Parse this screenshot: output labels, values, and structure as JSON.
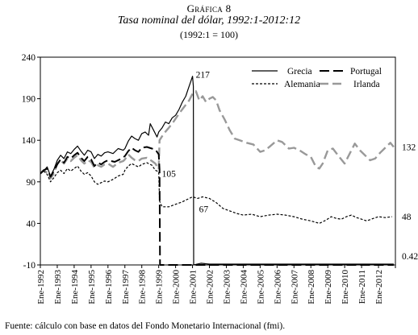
{
  "header": {
    "label": "Gráfica 8",
    "title": "Tasa nominal del dólar, 1992:1-2012:12",
    "subtitle": "(1992:1 = 100)"
  },
  "source": "Fuente: cálculo con base en datos del Fondo Monetario Internacional (fmi).",
  "chart_data": {
    "type": "line",
    "ylim": [
      -10,
      240
    ],
    "yticks": [
      -10,
      40,
      90,
      140,
      190,
      240
    ],
    "xlim": [
      1992,
      2013
    ],
    "xticks": [
      "Ene-1992",
      "Ene-1993",
      "Ene-1994",
      "Ene-1995",
      "Ene-1996",
      "Ene-1997",
      "Ene-1998",
      "Ene-1999",
      "Ene-2000",
      "Ene-2001",
      "Ene-2002",
      "Ene-2003",
      "Ene-2004",
      "Ene-2005",
      "Ene-2006",
      "Ene-2007",
      "Ene-2008",
      "Ene-2009",
      "Ene-2010",
      "Ene-2011",
      "Ene-2012"
    ],
    "legend_position": "top-right",
    "annotations": [
      {
        "text": "217",
        "x": 2001.0,
        "y": 217
      },
      {
        "text": "105",
        "x": 1999.0,
        "y": 105
      },
      {
        "text": "67",
        "x": 2001.0,
        "y": 67
      },
      {
        "text": "132",
        "x": 2013.0,
        "y": 132
      },
      {
        "text": "48",
        "x": 2013.0,
        "y": 48
      },
      {
        "text": "0.42",
        "x": 2013.0,
        "y": 0.42
      }
    ],
    "series": [
      {
        "name": "Grecia",
        "style": "solid",
        "color": "#000000",
        "points": [
          [
            1992.0,
            100
          ],
          [
            1992.2,
            103
          ],
          [
            1992.4,
            108
          ],
          [
            1992.6,
            97
          ],
          [
            1992.8,
            105
          ],
          [
            1993.0,
            116
          ],
          [
            1993.2,
            122
          ],
          [
            1993.4,
            118
          ],
          [
            1993.6,
            126
          ],
          [
            1993.8,
            124
          ],
          [
            1994.0,
            129
          ],
          [
            1994.2,
            133
          ],
          [
            1994.4,
            127
          ],
          [
            1994.6,
            122
          ],
          [
            1994.8,
            128
          ],
          [
            1995.0,
            126
          ],
          [
            1995.2,
            118
          ],
          [
            1995.4,
            123
          ],
          [
            1995.6,
            121
          ],
          [
            1995.8,
            125
          ],
          [
            1996.0,
            126
          ],
          [
            1996.3,
            124
          ],
          [
            1996.6,
            130
          ],
          [
            1996.9,
            128
          ],
          [
            1997.0,
            130
          ],
          [
            1997.2,
            139
          ],
          [
            1997.4,
            145
          ],
          [
            1997.6,
            142
          ],
          [
            1997.8,
            140
          ],
          [
            1998.0,
            148
          ],
          [
            1998.2,
            150
          ],
          [
            1998.4,
            146
          ],
          [
            1998.5,
            160
          ],
          [
            1998.7,
            152
          ],
          [
            1998.9,
            144
          ],
          [
            1999.0,
            150
          ],
          [
            1999.2,
            155
          ],
          [
            1999.4,
            162
          ],
          [
            1999.6,
            160
          ],
          [
            1999.8,
            167
          ],
          [
            2000.0,
            170
          ],
          [
            2000.2,
            177
          ],
          [
            2000.4,
            186
          ],
          [
            2000.6,
            193
          ],
          [
            2000.75,
            202
          ],
          [
            2000.9,
            211
          ],
          [
            2001.0,
            217
          ],
          [
            2001.05,
            205
          ],
          [
            2001.07,
            -10
          ],
          [
            2001.5,
            -8
          ],
          [
            2002.0,
            -9
          ],
          [
            2005.0,
            -9
          ],
          [
            2010.0,
            -9
          ],
          [
            2012.9,
            -9
          ]
        ]
      },
      {
        "name": "Portugal",
        "style": "dashed",
        "color": "#000000",
        "points": [
          [
            1992.0,
            100
          ],
          [
            1992.2,
            104
          ],
          [
            1992.4,
            106
          ],
          [
            1992.6,
            96
          ],
          [
            1992.8,
            103
          ],
          [
            1993.0,
            111
          ],
          [
            1993.2,
            117
          ],
          [
            1993.4,
            113
          ],
          [
            1993.6,
            120
          ],
          [
            1993.8,
            118
          ],
          [
            1994.0,
            122
          ],
          [
            1994.2,
            125
          ],
          [
            1994.4,
            119
          ],
          [
            1994.6,
            115
          ],
          [
            1994.8,
            120
          ],
          [
            1995.0,
            117
          ],
          [
            1995.2,
            109
          ],
          [
            1995.4,
            113
          ],
          [
            1995.6,
            111
          ],
          [
            1995.8,
            114
          ],
          [
            1996.0,
            116
          ],
          [
            1996.4,
            114
          ],
          [
            1996.8,
            118
          ],
          [
            1997.0,
            121
          ],
          [
            1997.2,
            127
          ],
          [
            1997.4,
            131
          ],
          [
            1997.6,
            128
          ],
          [
            1997.8,
            126
          ],
          [
            1998.0,
            131
          ],
          [
            1998.3,
            132
          ],
          [
            1998.6,
            130
          ],
          [
            1998.8,
            129
          ],
          [
            1999.0,
            123
          ],
          [
            1999.05,
            105
          ],
          [
            1999.08,
            -10
          ],
          [
            1999.5,
            -10
          ],
          [
            2001.0,
            -10
          ],
          [
            2005.0,
            -10
          ],
          [
            2012.9,
            -10
          ]
        ]
      },
      {
        "name": "Alemania",
        "style": "dotted",
        "color": "#000000",
        "points": [
          [
            1992.0,
            100
          ],
          [
            1992.2,
            103
          ],
          [
            1992.4,
            99
          ],
          [
            1992.6,
            90
          ],
          [
            1992.8,
            95
          ],
          [
            1993.0,
            101
          ],
          [
            1993.2,
            104
          ],
          [
            1993.4,
            100
          ],
          [
            1993.6,
            106
          ],
          [
            1993.8,
            103
          ],
          [
            1994.0,
            106
          ],
          [
            1994.2,
            109
          ],
          [
            1994.4,
            103
          ],
          [
            1994.6,
            99
          ],
          [
            1994.8,
            101
          ],
          [
            1995.0,
            97
          ],
          [
            1995.2,
            90
          ],
          [
            1995.4,
            87
          ],
          [
            1995.6,
            89
          ],
          [
            1995.8,
            91
          ],
          [
            1996.0,
            90
          ],
          [
            1996.3,
            93
          ],
          [
            1996.6,
            97
          ],
          [
            1996.9,
            99
          ],
          [
            1997.0,
            104
          ],
          [
            1997.2,
            109
          ],
          [
            1997.4,
            112
          ],
          [
            1997.6,
            110
          ],
          [
            1997.8,
            108
          ],
          [
            1998.0,
            111
          ],
          [
            1998.3,
            113
          ],
          [
            1998.6,
            110
          ],
          [
            1998.8,
            104
          ],
          [
            1999.0,
            102
          ],
          [
            1999.05,
            67
          ],
          [
            1999.2,
            60
          ],
          [
            1999.6,
            60
          ],
          [
            2000.0,
            63
          ],
          [
            2000.4,
            66
          ],
          [
            2000.7,
            69
          ],
          [
            2001.0,
            72
          ],
          [
            2001.3,
            70
          ],
          [
            2001.6,
            72
          ],
          [
            2002.0,
            70
          ],
          [
            2002.4,
            65
          ],
          [
            2002.8,
            58
          ],
          [
            2003.2,
            55
          ],
          [
            2003.6,
            52
          ],
          [
            2004.0,
            50
          ],
          [
            2004.5,
            51
          ],
          [
            2005.0,
            48
          ],
          [
            2005.5,
            50
          ],
          [
            2006.0,
            51
          ],
          [
            2006.5,
            50
          ],
          [
            2007.0,
            48
          ],
          [
            2007.5,
            45
          ],
          [
            2008.0,
            43
          ],
          [
            2008.5,
            40
          ],
          [
            2008.9,
            44
          ],
          [
            2009.2,
            48
          ],
          [
            2009.5,
            46
          ],
          [
            2009.8,
            45
          ],
          [
            2010.1,
            48
          ],
          [
            2010.4,
            50
          ],
          [
            2010.7,
            47
          ],
          [
            2011.0,
            45
          ],
          [
            2011.3,
            43
          ],
          [
            2011.7,
            46
          ],
          [
            2012.0,
            48
          ],
          [
            2012.4,
            47
          ],
          [
            2012.8,
            48
          ]
        ]
      },
      {
        "name": "Irlanda",
        "style": "longdash",
        "color": "#999999",
        "points": [
          [
            1992.0,
            100
          ],
          [
            1992.2,
            104
          ],
          [
            1992.4,
            101
          ],
          [
            1992.6,
            94
          ],
          [
            1992.8,
            100
          ],
          [
            1993.0,
            112
          ],
          [
            1993.2,
            116
          ],
          [
            1993.4,
            112
          ],
          [
            1993.6,
            118
          ],
          [
            1993.8,
            115
          ],
          [
            1994.0,
            119
          ],
          [
            1994.2,
            122
          ],
          [
            1994.4,
            116
          ],
          [
            1994.6,
            112
          ],
          [
            1994.8,
            116
          ],
          [
            1995.0,
            114
          ],
          [
            1995.2,
            107
          ],
          [
            1995.4,
            110
          ],
          [
            1995.6,
            108
          ],
          [
            1995.8,
            111
          ],
          [
            1996.0,
            112
          ],
          [
            1996.3,
            108
          ],
          [
            1996.6,
            113
          ],
          [
            1996.9,
            115
          ],
          [
            1997.0,
            117
          ],
          [
            1997.2,
            123
          ],
          [
            1997.4,
            119
          ],
          [
            1997.6,
            116
          ],
          [
            1997.8,
            115
          ],
          [
            1998.0,
            118
          ],
          [
            1998.3,
            119
          ],
          [
            1998.6,
            115
          ],
          [
            1998.8,
            112
          ],
          [
            1999.0,
            105
          ],
          [
            1999.05,
            140
          ],
          [
            1999.3,
            148
          ],
          [
            1999.6,
            155
          ],
          [
            1999.9,
            163
          ],
          [
            2000.2,
            172
          ],
          [
            2000.5,
            180
          ],
          [
            2000.8,
            188
          ],
          [
            2001.0,
            196
          ],
          [
            2001.2,
            199
          ],
          [
            2001.4,
            188
          ],
          [
            2001.6,
            193
          ],
          [
            2001.8,
            186
          ],
          [
            2002.0,
            190
          ],
          [
            2002.2,
            192
          ],
          [
            2002.4,
            188
          ],
          [
            2002.6,
            176
          ],
          [
            2002.9,
            165
          ],
          [
            2003.2,
            152
          ],
          [
            2003.5,
            142
          ],
          [
            2003.8,
            140
          ],
          [
            2004.2,
            137
          ],
          [
            2004.6,
            135
          ],
          [
            2005.0,
            126
          ],
          [
            2005.3,
            128
          ],
          [
            2005.6,
            133
          ],
          [
            2006.0,
            140
          ],
          [
            2006.3,
            138
          ],
          [
            2006.7,
            130
          ],
          [
            2007.0,
            131
          ],
          [
            2007.4,
            127
          ],
          [
            2007.7,
            123
          ],
          [
            2008.0,
            120
          ],
          [
            2008.3,
            108
          ],
          [
            2008.5,
            106
          ],
          [
            2008.7,
            112
          ],
          [
            2009.0,
            128
          ],
          [
            2009.3,
            130
          ],
          [
            2009.6,
            122
          ],
          [
            2010.0,
            112
          ],
          [
            2010.3,
            124
          ],
          [
            2010.6,
            136
          ],
          [
            2010.9,
            128
          ],
          [
            2011.2,
            122
          ],
          [
            2011.5,
            116
          ],
          [
            2011.8,
            118
          ],
          [
            2012.1,
            125
          ],
          [
            2012.4,
            131
          ],
          [
            2012.7,
            137
          ],
          [
            2012.9,
            132
          ]
        ]
      }
    ]
  }
}
